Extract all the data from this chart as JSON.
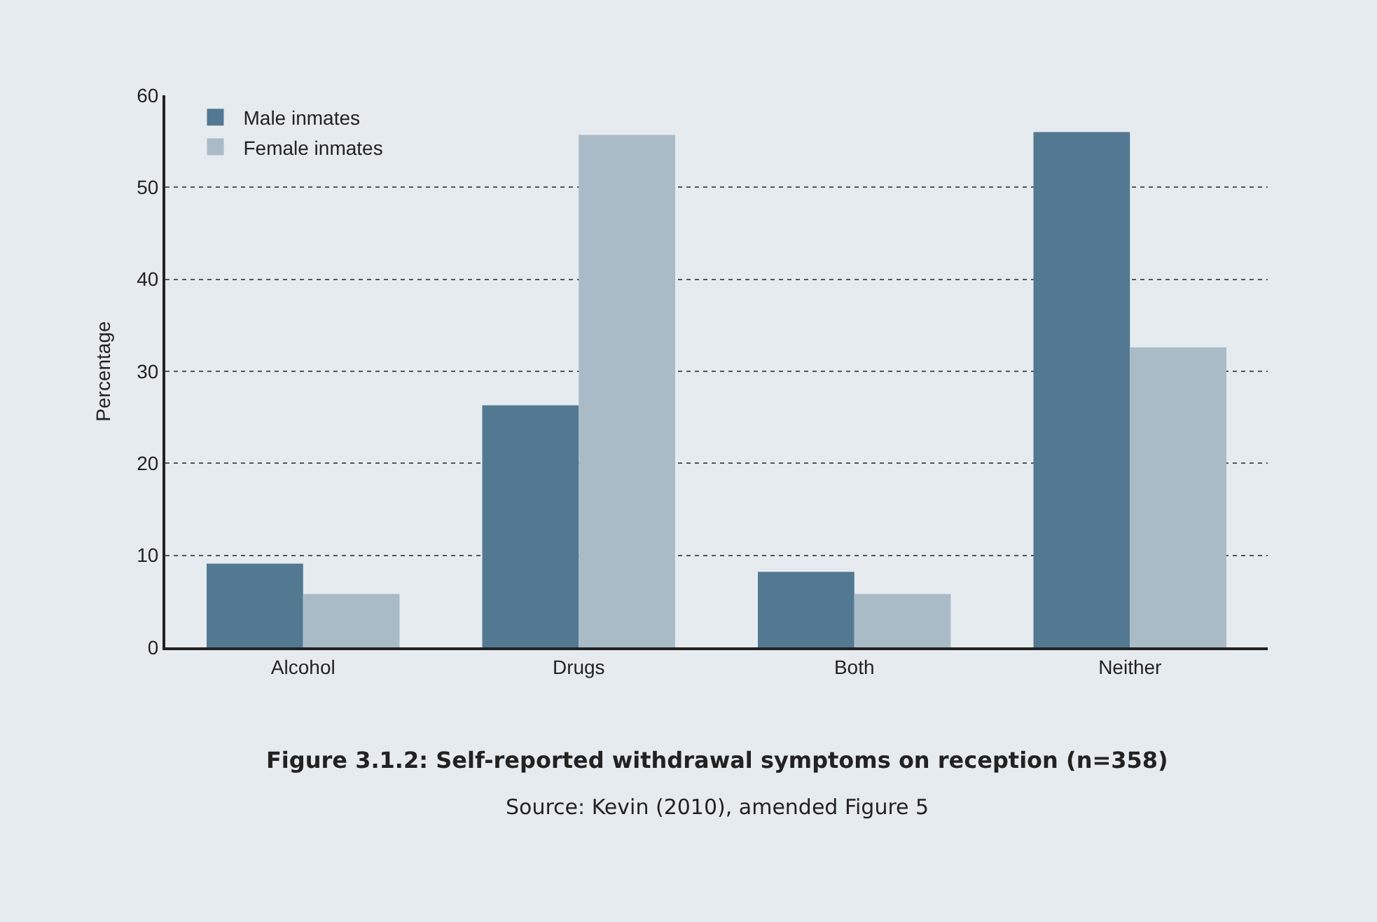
{
  "chart_data": {
    "type": "bar",
    "title": "Figure 3.1.2: Self-reported withdrawal symptoms on reception (n=358)",
    "ylabel": "Percentage",
    "annotations": [
      "Source: Kevin (2010), amended Figure 5"
    ],
    "categories": [
      "Alcohol",
      "Drugs",
      "Both",
      "Neither"
    ],
    "series": [
      {
        "name": "Male inmates",
        "color": "#537891",
        "values": [
          9.1,
          26.3,
          8.2,
          56.0
        ]
      },
      {
        "name": "Female inmates",
        "color": "#aabbc8",
        "values": [
          5.8,
          55.7,
          5.8,
          32.6
        ]
      }
    ],
    "ylim": [
      0,
      60
    ],
    "yticks": [
      0,
      10,
      20,
      30,
      40,
      50,
      60
    ],
    "grid": "y",
    "legend": "top left"
  }
}
